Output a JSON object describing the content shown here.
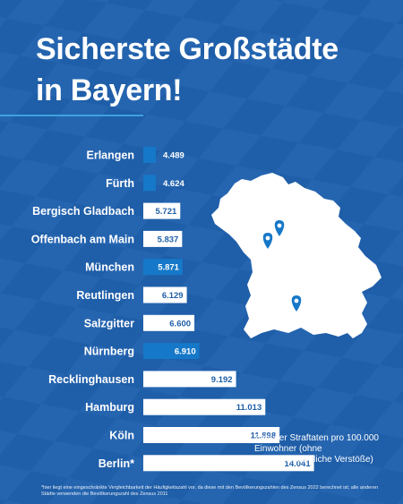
{
  "title_line1": "Sicherste Großstädte",
  "title_line2": "in Bayern!",
  "colors": {
    "background": "#1f5ea8",
    "highlight": "#1678c8",
    "white": "#ffffff",
    "accent_rule": "#3ea2dc"
  },
  "chart_data": {
    "type": "bar",
    "orientation": "horizontal",
    "categories": [
      "Erlangen",
      "Fürth",
      "Bergisch Gladbach",
      "Offenbach am Main",
      "München",
      "Reutlingen",
      "Salzgitter",
      "Nürnberg",
      "Recklinghausen",
      "Hamburg",
      "Köln",
      "Berlin*"
    ],
    "values": [
      4489,
      4624,
      5721,
      5837,
      5871,
      6129,
      6600,
      6910,
      9192,
      11013,
      11898,
      14041
    ],
    "value_labels": [
      "4.489",
      "4.624",
      "5.721",
      "5.837",
      "5.871",
      "6.129",
      "6.600",
      "6.910",
      "9.192",
      "11.013",
      "11.898",
      "14.041"
    ],
    "highlighted": [
      "Erlangen",
      "Fürth",
      "München",
      "Nürnberg"
    ],
    "legend_note": "Zahl der Straftaten pro 100.000 Einwohner (ohne ausländerrechtliche Verstöße)"
  },
  "map": {
    "cities": [
      "Erlangen",
      "Fürth",
      "München"
    ]
  },
  "footnote": "*hier liegt eine eingeschränkte Vergleichbarkeit der Häufigkeitszahl vor, da diese mit den Bevölkerungszahlen des Zensus 2022 berechnet ist; alle anderen Städte verwenden die Bevölkerungszahl des Zensus 2011"
}
